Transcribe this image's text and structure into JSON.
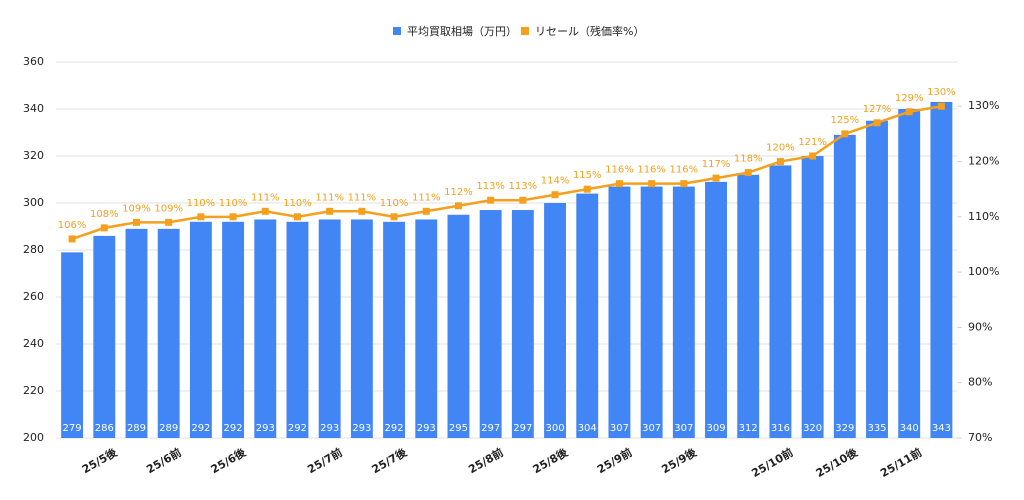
{
  "chart_data": {
    "type": "bar-line",
    "categories": [
      null,
      "25/5後",
      null,
      "25/6前",
      null,
      "25/6後",
      null,
      null,
      "25/7前",
      null,
      "25/7後",
      null,
      null,
      "25/8前",
      null,
      "25/8後",
      null,
      "25/9前",
      null,
      "25/9後",
      null,
      null,
      "25/10前",
      null,
      "25/10後",
      null,
      "25/11前",
      null
    ],
    "series": [
      {
        "name": "平均買取相場（万円）",
        "type": "bar",
        "color": "#4285f4",
        "values": [
          279,
          286,
          289,
          289,
          292,
          292,
          293,
          292,
          293,
          293,
          292,
          293,
          295,
          297,
          297,
          300,
          304,
          307,
          307,
          307,
          309,
          312,
          316,
          320,
          329,
          335,
          340,
          343
        ]
      },
      {
        "name": "リセール（残価率%）",
        "type": "line",
        "axis": "y2",
        "color": "#f4a01c",
        "values": [
          106,
          108,
          109,
          109,
          110,
          110,
          111,
          110,
          111,
          111,
          110,
          111,
          112,
          113,
          113,
          114,
          115,
          116,
          116,
          116,
          117,
          118,
          120,
          121,
          125,
          127,
          129,
          130
        ],
        "value_labels": [
          "106%",
          "108%",
          "109%",
          "109%",
          "110%",
          "110%",
          "111%",
          "110%",
          "111%",
          "111%",
          "110%",
          "111%",
          "112%",
          "113%",
          "113%",
          "114%",
          "115%",
          "116%",
          "116%",
          "116%",
          "117%",
          "118%",
          "120%",
          "121%",
          "125%",
          "127%",
          "129%",
          "130%"
        ]
      }
    ],
    "ylim": [
      200,
      360
    ],
    "yticks": [
      200,
      220,
      240,
      260,
      280,
      300,
      320,
      340,
      360
    ],
    "y2lim": [
      70,
      138
    ],
    "y2ticks": [
      {
        "value": 70,
        "label": "70%"
      },
      {
        "value": 80,
        "label": "80%"
      },
      {
        "value": 90,
        "label": "90%"
      },
      {
        "value": 100,
        "label": "100%"
      },
      {
        "value": 110,
        "label": "110%"
      },
      {
        "value": 120,
        "label": "120%"
      },
      {
        "value": 130,
        "label": "130%"
      }
    ],
    "grid": true,
    "legend": "top"
  }
}
